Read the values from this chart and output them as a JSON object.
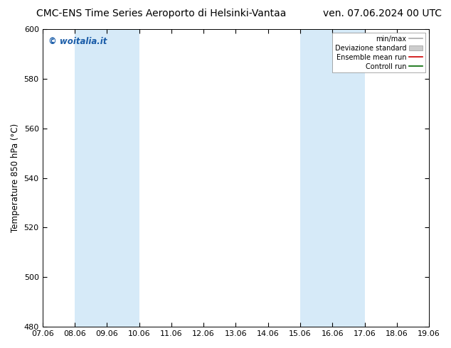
{
  "title_left": "CMC-ENS Time Series Aeroporto di Helsinki-Vantaa",
  "title_right": "ven. 07.06.2024 00 UTC",
  "ylabel": "Temperature 850 hPa (°C)",
  "ylim": [
    480,
    600
  ],
  "yticks": [
    480,
    500,
    520,
    540,
    560,
    580,
    600
  ],
  "xlim": [
    0,
    12
  ],
  "xtick_labels": [
    "07.06",
    "08.06",
    "09.06",
    "10.06",
    "11.06",
    "12.06",
    "13.06",
    "14.06",
    "15.06",
    "16.06",
    "17.06",
    "18.06",
    "19.06"
  ],
  "xtick_positions": [
    0,
    1,
    2,
    3,
    4,
    5,
    6,
    7,
    8,
    9,
    10,
    11,
    12
  ],
  "shaded_bands": [
    {
      "xmin": 1,
      "xmax": 3,
      "color": "#d6eaf8"
    },
    {
      "xmin": 8,
      "xmax": 10,
      "color": "#d6eaf8"
    }
  ],
  "watermark_text": "© woitalia.it",
  "watermark_color": "#1a5ca8",
  "legend_entries": [
    {
      "label": "min/max",
      "color": "#aaaaaa",
      "type": "line"
    },
    {
      "label": "Deviazione standard",
      "color": "#cccccc",
      "type": "fill"
    },
    {
      "label": "Ensemble mean run",
      "color": "#cc0000",
      "type": "line"
    },
    {
      "label": "Controll run",
      "color": "#006600",
      "type": "line"
    }
  ],
  "bg_color": "#ffffff",
  "plot_bg_color": "#ffffff",
  "title_fontsize": 10,
  "axis_fontsize": 8.5,
  "tick_fontsize": 8
}
